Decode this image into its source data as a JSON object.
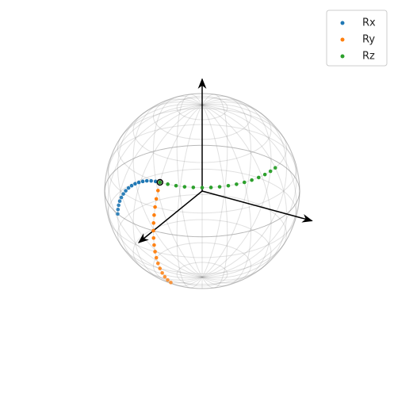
{
  "chart_data": {
    "type": "scatter3d",
    "legend": "upper right",
    "series": [
      {
        "name": "Rx",
        "color": "#1f77b4",
        "x": [
          0.866,
          0.866,
          0.866,
          0.866,
          0.866,
          0.866,
          0.866,
          0.866,
          0.866,
          0.866,
          0.866,
          0.866,
          0.866,
          0.866,
          0.866,
          0.866
        ],
        "y": [
          0,
          -0.052,
          -0.104,
          -0.155,
          -0.203,
          -0.25,
          -0.294,
          -0.335,
          -0.372,
          -0.405,
          -0.433,
          -0.457,
          -0.476,
          -0.489,
          -0.497,
          -0.5
        ],
        "z": [
          0.5,
          0.497,
          0.489,
          0.476,
          0.457,
          0.433,
          0.405,
          0.372,
          0.335,
          0.294,
          0.25,
          0.203,
          0.155,
          0.104,
          0.052,
          0
        ]
      },
      {
        "name": "Ry",
        "color": "#ff7f0e",
        "x": [
          0.866,
          0.906,
          0.94,
          0.966,
          0.985,
          0.996,
          1,
          0.996,
          0.985,
          0.966,
          0.94,
          0.906,
          0.866,
          0.819,
          0.766,
          0.707,
          0.643
        ],
        "y": [
          0,
          0,
          0,
          0,
          0,
          0,
          0,
          0,
          0,
          0,
          0,
          0,
          0,
          0,
          0,
          0,
          0
        ],
        "z": [
          0.5,
          0.423,
          0.342,
          0.259,
          0.174,
          0.087,
          0,
          -0.087,
          -0.174,
          -0.259,
          -0.342,
          -0.423,
          -0.5,
          -0.574,
          -0.643,
          -0.707,
          -0.766
        ]
      },
      {
        "name": "Rz",
        "color": "#2ca02c",
        "x": [
          0.866,
          0.861,
          0.847,
          0.824,
          0.791,
          0.75,
          0.701,
          0.644,
          0.579,
          0.509,
          0.433,
          0.352,
          0.268,
          0.18,
          0.09,
          0
        ],
        "y": [
          0,
          0.09,
          0.18,
          0.268,
          0.352,
          0.433,
          0.509,
          0.579,
          0.644,
          0.701,
          0.75,
          0.791,
          0.824,
          0.847,
          0.861,
          0.866
        ],
        "z": [
          0.5,
          0.5,
          0.5,
          0.5,
          0.5,
          0.5,
          0.5,
          0.5,
          0.5,
          0.5,
          0.5,
          0.5,
          0.5,
          0.5,
          0.5,
          0.5
        ]
      }
    ]
  }
}
